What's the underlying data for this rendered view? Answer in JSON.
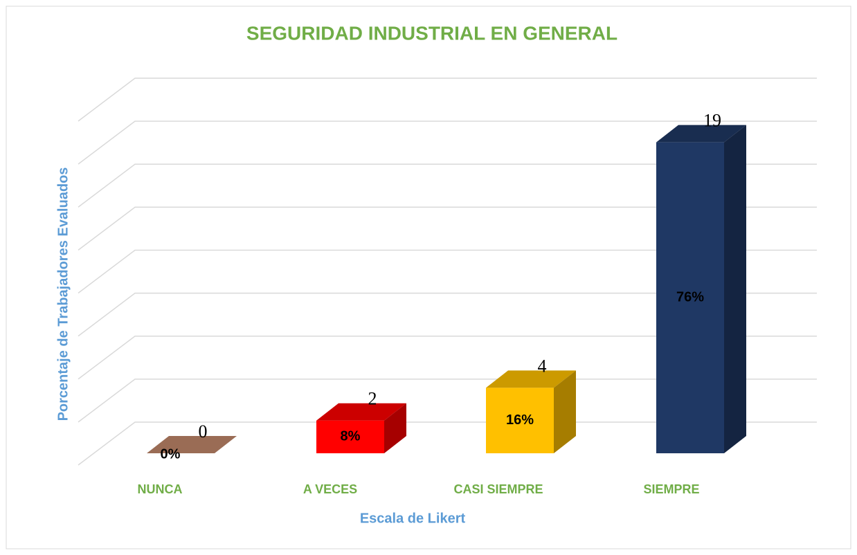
{
  "chart_data": {
    "type": "bar3d",
    "title": "SEGURIDAD INDUSTRIAL EN GENERAL",
    "y_label": "Porcentaje de Trabajadores Evaluados",
    "x_label": "Escala de Likert",
    "categories": [
      "NUNCA",
      "A VECES",
      "CASI SIEMPRE",
      "SIEMPRE"
    ],
    "values": [
      0,
      2,
      4,
      19
    ],
    "colors": [
      "#c0876a",
      "#ff0000",
      "#ffc000",
      "#1f3864"
    ],
    "shares": {
      "values": [
        0,
        8,
        16,
        76
      ],
      "value_labels": [
        "0%",
        "8%",
        "16%",
        "76%"
      ]
    },
    "ylim": [
      0,
      20
    ],
    "yticks": [
      0,
      2.5,
      5,
      7.5,
      10,
      12.5,
      15,
      17.5,
      20
    ],
    "grid": true
  }
}
